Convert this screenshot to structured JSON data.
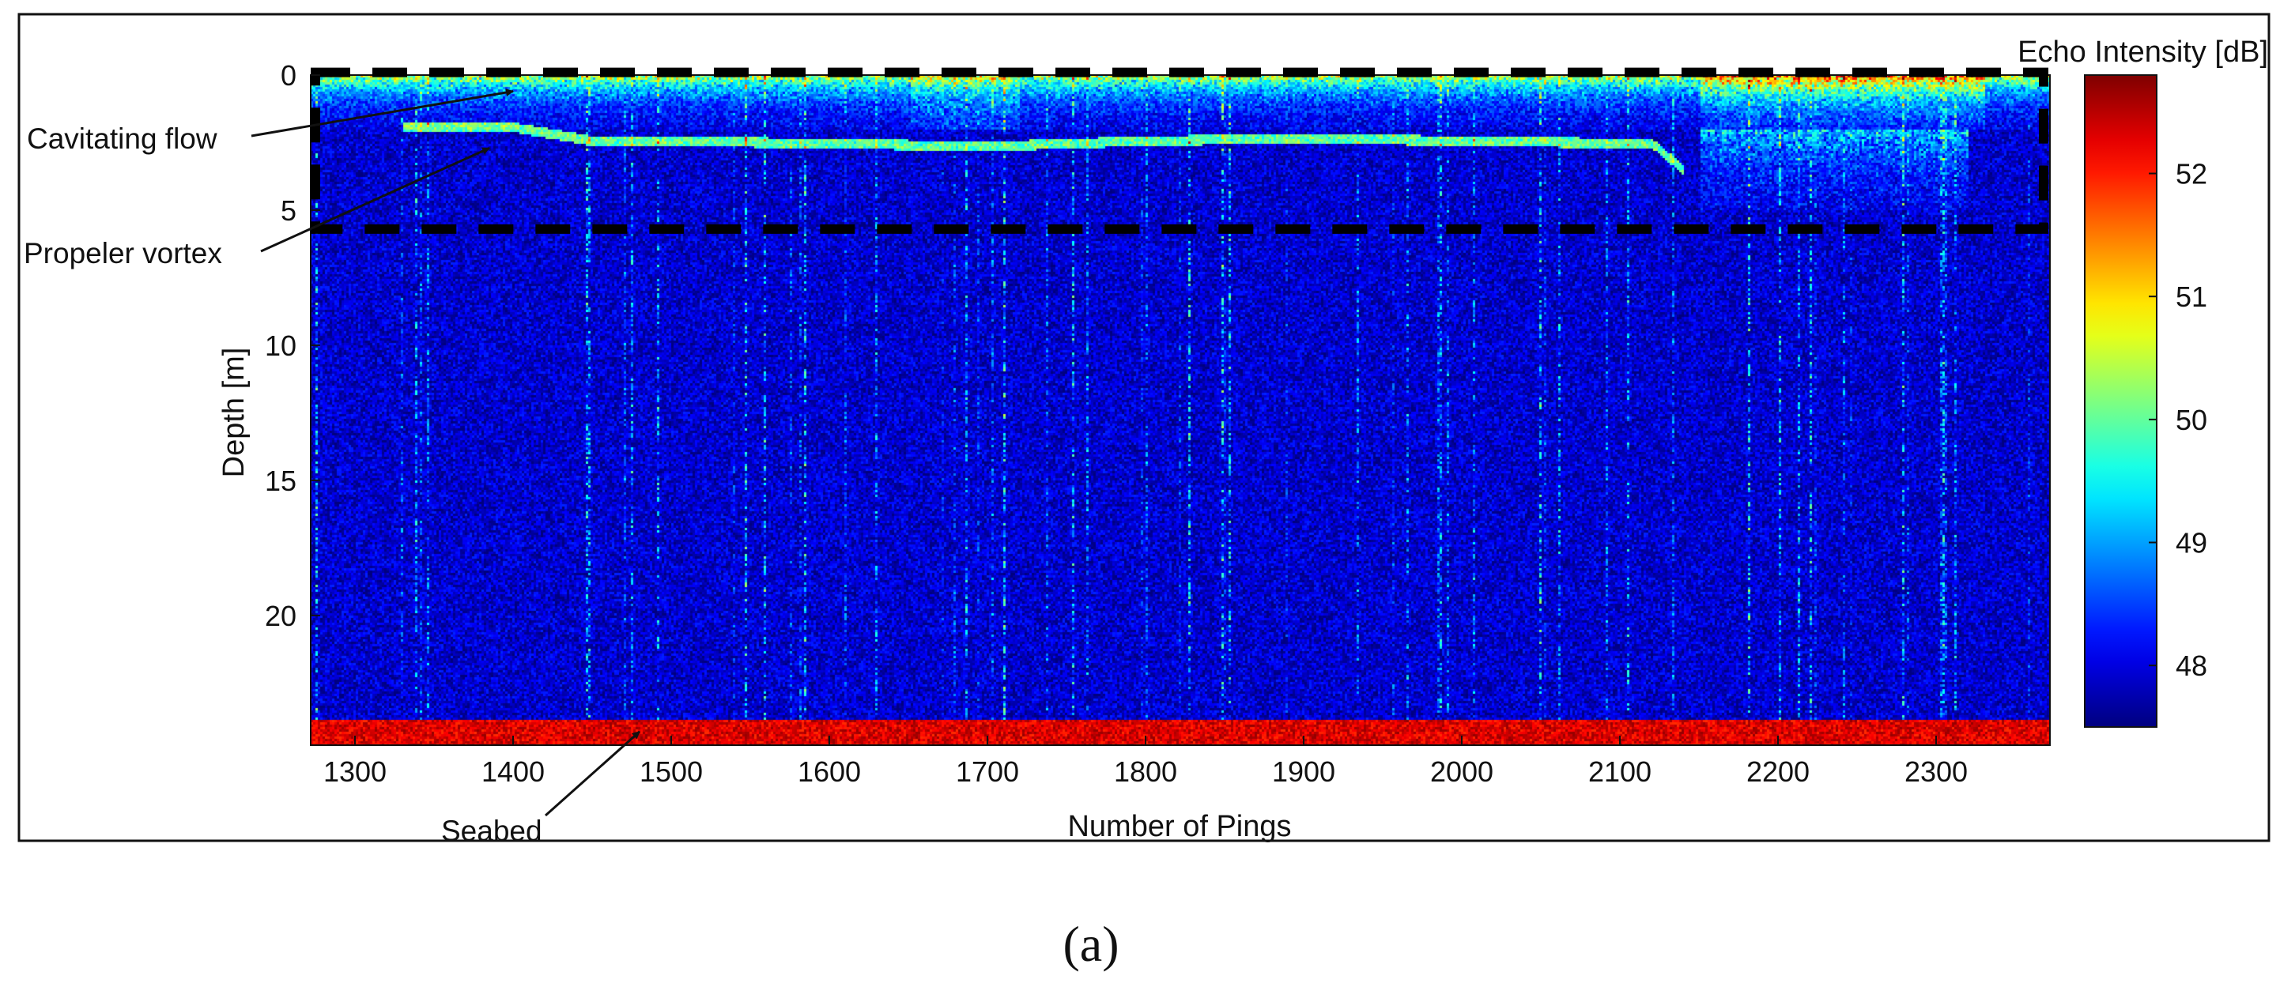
{
  "chart_data": {
    "type": "heatmap",
    "title": "",
    "xlabel": "Number of Pings",
    "ylabel": "Depth [m]",
    "x_ticks": [
      1300,
      1400,
      1500,
      1600,
      1700,
      1800,
      1900,
      2000,
      2100,
      2200,
      2300
    ],
    "y_ticks": [
      0,
      5,
      10,
      15,
      20
    ],
    "xlim": [
      1272,
      2372
    ],
    "ylim": [
      0,
      24.8
    ],
    "y_reversed": true,
    "grid": false,
    "colorbar": {
      "label": "Echo Intensity [dB]",
      "ticks": [
        48,
        49,
        50,
        51,
        52
      ],
      "range": [
        47.5,
        52.8
      ],
      "colormap": "jet"
    },
    "features": {
      "surface_layer_depth": [
        0,
        2
      ],
      "seabed_depth": 24,
      "vortex_track": {
        "pings": [
          1330,
          1400,
          1450,
          1500,
          1600,
          1700,
          1800,
          1900,
          2000,
          2120,
          2140
        ],
        "depth": [
          1.9,
          1.9,
          2.4,
          2.4,
          2.5,
          2.6,
          2.4,
          2.3,
          2.4,
          2.5,
          3.5
        ]
      },
      "highlight_box": {
        "pings": [
          1272,
          2370
        ],
        "depth": [
          -0.1,
          5.7
        ]
      }
    },
    "annotations": [
      {
        "text": "Cavitating flow",
        "target_ping": 1400,
        "target_depth": 0.6
      },
      {
        "text": "Propeler vortex",
        "target_ping": 1385,
        "target_depth": 2.7
      },
      {
        "text": "Seabed",
        "target_ping": 1480,
        "target_depth": 24.3
      }
    ]
  },
  "caption": "(a)"
}
